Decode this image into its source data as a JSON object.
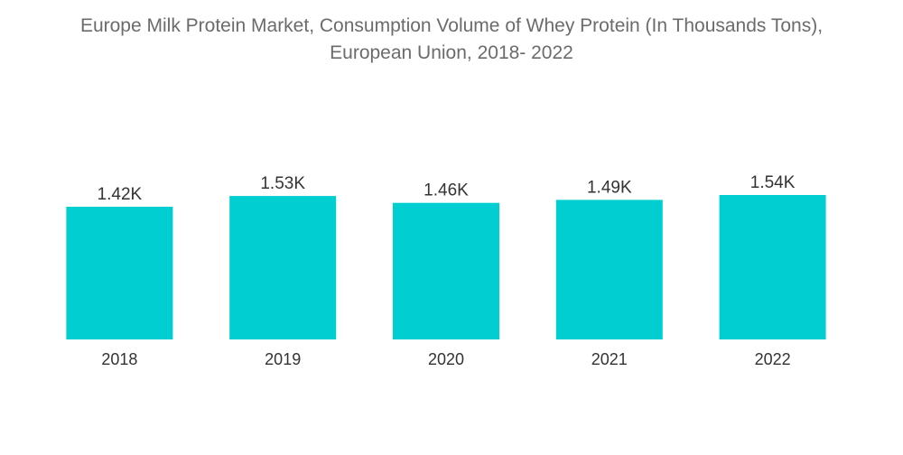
{
  "chart_data": {
    "type": "bar",
    "title_line1": "Europe Milk Protein Market, Consumption Volume of Whey Protein (In Thousands Tons),",
    "title_line2": "European Union, 2018- 2022",
    "categories": [
      "2018",
      "2019",
      "2020",
      "2021",
      "2022"
    ],
    "values": [
      1.42,
      1.53,
      1.46,
      1.49,
      1.54
    ],
    "value_labels": [
      "1.42K",
      "1.53K",
      "1.46K",
      "1.49K",
      "1.54K"
    ],
    "xlabel": "",
    "ylabel": "",
    "ylim": [
      0,
      1.54
    ],
    "grid": false,
    "legend": "none",
    "bar_color": "#00CED1"
  }
}
